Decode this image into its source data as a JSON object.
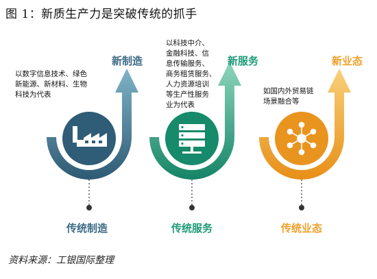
{
  "title": "图 1：新质生产力是突破传统的抓手",
  "source": "资料来源：工银国际整理",
  "columns": [
    {
      "top_label": "新制造",
      "bottom_label": "传统制造",
      "description_lines": [
        "以数字信息技术、绿色",
        "新能源、新材料、生物",
        "科技为代表"
      ],
      "icon": "factory-icon",
      "color": "#3d6b86"
    },
    {
      "top_label": "新服务",
      "bottom_label": "传统服务",
      "description_lines": [
        "以科技中介、",
        "金融科技、信",
        "息传输服务、",
        "商务租赁服务、",
        "人力资源培训",
        "等生产性服务",
        "业为代表"
      ],
      "icon": "server-icon",
      "color": "#1f9a78"
    },
    {
      "top_label": "新业态",
      "bottom_label": "传统业态",
      "description_lines": [
        "如国内外贸易链",
        "场景融合等"
      ],
      "icon": "network-hub-icon",
      "color": "#f0a12b"
    }
  ]
}
